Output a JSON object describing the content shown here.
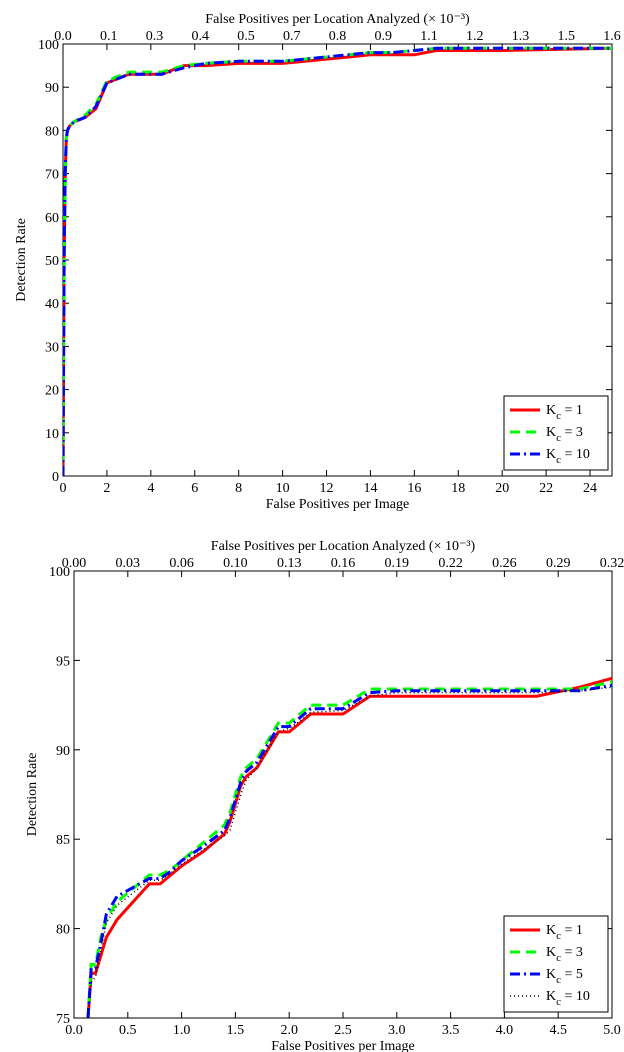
{
  "chart_data": [
    {
      "type": "line",
      "xlabel": "False Positives per Image",
      "x2label": "False Positives per Location Analyzed (× 10⁻³)",
      "ylabel": "Detection Rate",
      "xlim": [
        0,
        25
      ],
      "ylim": [
        0,
        100
      ],
      "xticks": [
        "0",
        "2",
        "4",
        "6",
        "8",
        "10",
        "12",
        "14",
        "16",
        "18",
        "20",
        "22",
        "24"
      ],
      "x2ticks": [
        "0.0",
        "0.1",
        "0.3",
        "0.4",
        "0.5",
        "0.7",
        "0.8",
        "0.9",
        "1.1",
        "1.2",
        "1.3",
        "1.5",
        "1.6"
      ],
      "yticks": [
        "0",
        "10",
        "20",
        "30",
        "40",
        "50",
        "60",
        "70",
        "80",
        "90",
        "100"
      ],
      "legend_position": "bottom-right",
      "series": [
        {
          "name": "1",
          "color": "#ff0000",
          "dash": "solid",
          "x": [
            0,
            0.05,
            0.1,
            0.15,
            0.2,
            0.3,
            0.5,
            1.0,
            1.5,
            2.0,
            2.5,
            3.0,
            4.5,
            5.5,
            6.5,
            8,
            10,
            11,
            12,
            13,
            14,
            15,
            16,
            17,
            20,
            25
          ],
          "y": [
            0,
            50,
            70,
            78,
            80,
            81,
            82,
            83,
            85,
            91,
            92,
            93,
            93,
            95,
            95,
            95.5,
            95.5,
            96,
            96.5,
            97,
            97.5,
            97.5,
            97.5,
            98.5,
            98.5,
            99
          ]
        },
        {
          "name": "3",
          "color": "#00ff00",
          "dash": "dashed",
          "x": [
            0,
            0.05,
            0.1,
            0.15,
            0.2,
            0.3,
            0.5,
            1.0,
            1.5,
            2.0,
            2.5,
            3.0,
            4.5,
            5.5,
            6.5,
            8,
            10,
            11,
            12,
            13,
            14,
            15,
            16,
            17,
            20,
            25
          ],
          "y": [
            0,
            50,
            70,
            78,
            80,
            81,
            82,
            83.5,
            86,
            91.5,
            92.5,
            93.5,
            93.5,
            95,
            95.5,
            96,
            96,
            96.5,
            97,
            97.5,
            98,
            98,
            98.5,
            99,
            99,
            99
          ]
        },
        {
          "name": "10",
          "color": "#0000ff",
          "dash": "dashdot",
          "x": [
            0,
            0.05,
            0.1,
            0.15,
            0.2,
            0.3,
            0.5,
            1.0,
            1.5,
            2.0,
            2.5,
            3.0,
            4.5,
            5.5,
            6.5,
            8,
            10,
            11,
            12,
            13,
            14,
            15,
            16,
            17,
            20,
            25
          ],
          "y": [
            0,
            50,
            70,
            78,
            80,
            81,
            82,
            83,
            85.5,
            91,
            92,
            93,
            93,
            94.5,
            95.5,
            96,
            96,
            96.5,
            97,
            97.5,
            98,
            98,
            98.5,
            99,
            99,
            99
          ]
        }
      ]
    },
    {
      "type": "line",
      "xlabel": "False Positives per Image",
      "x2label": "False Positives per Location Analyzed (× 10⁻³)",
      "ylabel": "Detection Rate",
      "xlim": [
        0,
        5
      ],
      "ylim": [
        75,
        100
      ],
      "xticks": [
        "0.0",
        "0.5",
        "1.0",
        "1.5",
        "2.0",
        "2.5",
        "3.0",
        "3.5",
        "4.0",
        "4.5",
        "5.0"
      ],
      "x2ticks": [
        "0.00",
        "0.03",
        "0.06",
        "0.10",
        "0.13",
        "0.16",
        "0.19",
        "0.22",
        "0.26",
        "0.29",
        "0.32"
      ],
      "yticks": [
        "75",
        "80",
        "85",
        "90",
        "95",
        "100"
      ],
      "legend_position": "bottom-right",
      "series": [
        {
          "name": "1",
          "color": "#ff0000",
          "dash": "solid",
          "x": [
            0.13,
            0.16,
            0.2,
            0.25,
            0.3,
            0.4,
            0.7,
            0.8,
            0.9,
            1.0,
            1.2,
            1.4,
            1.45,
            1.55,
            1.6,
            1.7,
            1.8,
            1.9,
            2.0,
            2.1,
            2.2,
            2.5,
            2.75,
            3.0,
            4.3,
            4.7,
            5.0
          ],
          "y": [
            75,
            77.5,
            77.5,
            78.5,
            79.5,
            80.5,
            82.5,
            82.5,
            83,
            83.5,
            84.3,
            85.3,
            86,
            88,
            88.5,
            89,
            90,
            91,
            91,
            91.5,
            92,
            92,
            93,
            93,
            93,
            93.5,
            94
          ]
        },
        {
          "name": "3",
          "color": "#00ff00",
          "dash": "dashed",
          "x": [
            0.13,
            0.16,
            0.2,
            0.25,
            0.3,
            0.4,
            0.7,
            0.8,
            0.9,
            1.0,
            1.2,
            1.4,
            1.45,
            1.55,
            1.6,
            1.7,
            1.8,
            1.9,
            2.0,
            2.1,
            2.2,
            2.5,
            2.75,
            3.0,
            4.3,
            4.7,
            5.0
          ],
          "y": [
            75,
            78,
            78,
            79.5,
            80.5,
            81.5,
            83,
            83,
            83.3,
            83.8,
            84.8,
            85.8,
            86.5,
            88.5,
            89,
            89.5,
            90.5,
            91.5,
            91.5,
            92,
            92.5,
            92.5,
            93.4,
            93.4,
            93.4,
            93.4,
            93.8
          ]
        },
        {
          "name": "5",
          "color": "#0000ff",
          "dash": "dashdot",
          "x": [
            0.13,
            0.16,
            0.2,
            0.25,
            0.3,
            0.4,
            0.7,
            0.8,
            0.9,
            1.0,
            1.2,
            1.4,
            1.45,
            1.55,
            1.6,
            1.7,
            1.8,
            1.9,
            2.0,
            2.1,
            2.2,
            2.5,
            2.75,
            3.0,
            4.3,
            4.7,
            5.0
          ],
          "y": [
            75,
            77.8,
            77.8,
            79.2,
            80.8,
            81.8,
            82.8,
            82.8,
            83.2,
            83.8,
            84.6,
            85.5,
            86.2,
            88.2,
            88.8,
            89.3,
            90.3,
            91.3,
            91.3,
            91.8,
            92.3,
            92.3,
            93.2,
            93.3,
            93.3,
            93.3,
            93.6
          ]
        },
        {
          "name": "10",
          "color": "#000000",
          "dash": "dotted",
          "x": [
            0.13,
            0.16,
            0.2,
            0.25,
            0.3,
            0.4,
            0.7,
            0.8,
            0.9,
            1.0,
            1.2,
            1.4,
            1.45,
            1.55,
            1.6,
            1.7,
            1.8,
            1.9,
            2.0,
            2.1,
            2.2,
            2.5,
            2.75,
            3.0,
            4.3,
            4.7,
            5.0
          ],
          "y": [
            75,
            77,
            77.3,
            78.8,
            80.3,
            81.3,
            82.7,
            82.7,
            83.1,
            83.6,
            84.4,
            85.2,
            85.5,
            87.5,
            88.3,
            89,
            90,
            91,
            91.2,
            91.6,
            92.1,
            92.2,
            93,
            93.2,
            93.2,
            93.3,
            93.5
          ]
        }
      ]
    }
  ]
}
